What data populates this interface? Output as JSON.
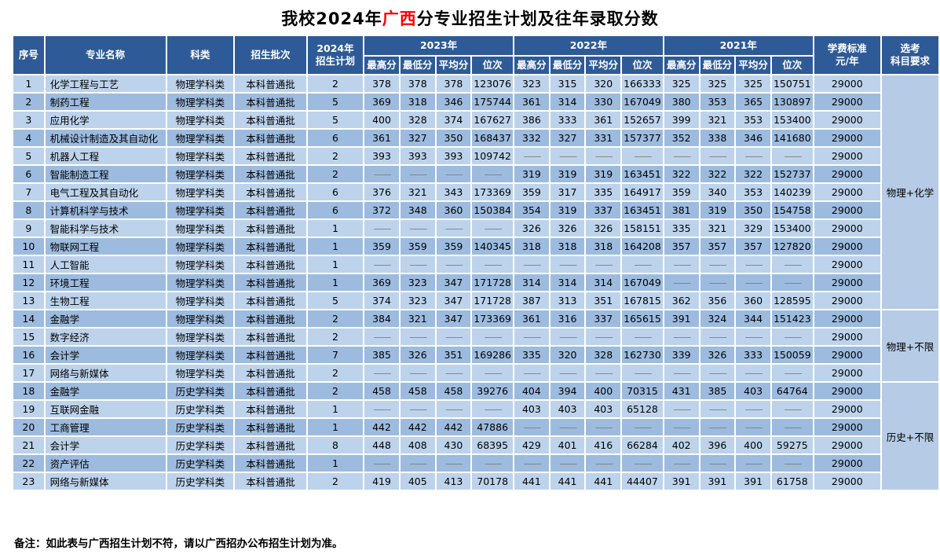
{
  "title": {
    "prefix": "我校2024年",
    "highlight": "广西",
    "suffix": "分专业招生计划及往年录取分数"
  },
  "note": "备注：如此表与广西招生计划不符，请以广西招办公布招生计划为准。",
  "colors": {
    "header_bg": "#2e5b97",
    "row_light": "#bdd3ec",
    "row_dark": "#9dbbde",
    "req_col_bg": "#b6cbe5",
    "title_highlight": "#ff0000",
    "dash": "#7f7f7f"
  },
  "table": {
    "headers": {
      "no": "序号",
      "major": "专业名称",
      "category": "科类",
      "batch": "招生批次",
      "plan2024": "2024年\n招生计划",
      "year2023": "2023年",
      "year2022": "2022年",
      "year2021": "2021年",
      "score_cols": [
        "最高分",
        "最低分",
        "平均分",
        "位次"
      ],
      "tuition": "学费标准\n元/年",
      "subject_req": "选考\n科目要求"
    },
    "merged_requirements": [
      {
        "label": "物理+化学",
        "row_start": 1,
        "row_span": 13
      },
      {
        "label": "物理+不限",
        "row_start": 14,
        "row_span": 4
      },
      {
        "label": "历史+不限",
        "row_start": 18,
        "row_span": 6
      }
    ],
    "rows": [
      {
        "no": "1",
        "major": "化学工程与工艺",
        "category": "物理学科类",
        "batch": "本科普通批",
        "plan": "2",
        "s2023": [
          "378",
          "378",
          "378",
          "123076"
        ],
        "s2022": [
          "323",
          "315",
          "320",
          "166333"
        ],
        "s2021": [
          "325",
          "325",
          "325",
          "150751"
        ],
        "tuition": "29000"
      },
      {
        "no": "2",
        "major": "制药工程",
        "category": "物理学科类",
        "batch": "本科普通批",
        "plan": "5",
        "s2023": [
          "369",
          "318",
          "346",
          "175744"
        ],
        "s2022": [
          "361",
          "314",
          "330",
          "167049"
        ],
        "s2021": [
          "380",
          "353",
          "365",
          "130897"
        ],
        "tuition": "29000"
      },
      {
        "no": "3",
        "major": "应用化学",
        "category": "物理学科类",
        "batch": "本科普通批",
        "plan": "5",
        "s2023": [
          "400",
          "328",
          "374",
          "167627"
        ],
        "s2022": [
          "386",
          "333",
          "361",
          "152657"
        ],
        "s2021": [
          "399",
          "321",
          "353",
          "153400"
        ],
        "tuition": "29000"
      },
      {
        "no": "4",
        "major": "机械设计制造及其自动化",
        "category": "物理学科类",
        "batch": "本科普通批",
        "plan": "6",
        "s2023": [
          "361",
          "327",
          "350",
          "168437"
        ],
        "s2022": [
          "332",
          "327",
          "331",
          "157377"
        ],
        "s2021": [
          "352",
          "338",
          "346",
          "141680"
        ],
        "tuition": "29000"
      },
      {
        "no": "5",
        "major": "机器人工程",
        "category": "物理学科类",
        "batch": "本科普通批",
        "plan": "2",
        "s2023": [
          "393",
          "393",
          "393",
          "109742"
        ],
        "s2022": [
          "——",
          "——",
          "——",
          "——"
        ],
        "s2021": [
          "——",
          "——",
          "——",
          "——"
        ],
        "tuition": "29000"
      },
      {
        "no": "6",
        "major": "智能制造工程",
        "category": "物理学科类",
        "batch": "本科普通批",
        "plan": "2",
        "s2023": [
          "——",
          "——",
          "——",
          "——"
        ],
        "s2022": [
          "319",
          "319",
          "319",
          "163451"
        ],
        "s2021": [
          "322",
          "322",
          "322",
          "152737"
        ],
        "tuition": "29000"
      },
      {
        "no": "7",
        "major": "电气工程及其自动化",
        "category": "物理学科类",
        "batch": "本科普通批",
        "plan": "6",
        "s2023": [
          "376",
          "321",
          "343",
          "173369"
        ],
        "s2022": [
          "359",
          "317",
          "335",
          "164917"
        ],
        "s2021": [
          "359",
          "340",
          "353",
          "140239"
        ],
        "tuition": "29000"
      },
      {
        "no": "8",
        "major": "计算机科学与技术",
        "category": "物理学科类",
        "batch": "本科普通批",
        "plan": "6",
        "s2023": [
          "372",
          "348",
          "360",
          "150384"
        ],
        "s2022": [
          "354",
          "319",
          "337",
          "163451"
        ],
        "s2021": [
          "381",
          "319",
          "350",
          "154758"
        ],
        "tuition": "29000"
      },
      {
        "no": "9",
        "major": "智能科学与技术",
        "category": "物理学科类",
        "batch": "本科普通批",
        "plan": "1",
        "s2023": [
          "——",
          "——",
          "——",
          "——"
        ],
        "s2022": [
          "326",
          "326",
          "326",
          "158151"
        ],
        "s2021": [
          "335",
          "321",
          "329",
          "153400"
        ],
        "tuition": "29000"
      },
      {
        "no": "10",
        "major": "物联网工程",
        "category": "物理学科类",
        "batch": "本科普通批",
        "plan": "1",
        "s2023": [
          "359",
          "359",
          "359",
          "140345"
        ],
        "s2022": [
          "318",
          "318",
          "318",
          "164208"
        ],
        "s2021": [
          "357",
          "357",
          "357",
          "127820"
        ],
        "tuition": "29000"
      },
      {
        "no": "11",
        "major": "人工智能",
        "category": "物理学科类",
        "batch": "本科普通批",
        "plan": "1",
        "s2023": [
          "——",
          "——",
          "——",
          "——"
        ],
        "s2022": [
          "——",
          "——",
          "——",
          "——"
        ],
        "s2021": [
          "——",
          "——",
          "——",
          "——"
        ],
        "tuition": "29000"
      },
      {
        "no": "12",
        "major": "环境工程",
        "category": "物理学科类",
        "batch": "本科普通批",
        "plan": "1",
        "s2023": [
          "369",
          "323",
          "347",
          "171728"
        ],
        "s2022": [
          "314",
          "314",
          "314",
          "167049"
        ],
        "s2021": [
          "——",
          "——",
          "——",
          "——"
        ],
        "tuition": "29000"
      },
      {
        "no": "13",
        "major": "生物工程",
        "category": "物理学科类",
        "batch": "本科普通批",
        "plan": "5",
        "s2023": [
          "374",
          "323",
          "347",
          "171728"
        ],
        "s2022": [
          "387",
          "313",
          "351",
          "167815"
        ],
        "s2021": [
          "362",
          "356",
          "360",
          "128595"
        ],
        "tuition": "29000"
      },
      {
        "no": "14",
        "major": "金融学",
        "category": "物理学科类",
        "batch": "本科普通批",
        "plan": "2",
        "s2023": [
          "384",
          "321",
          "347",
          "173369"
        ],
        "s2022": [
          "361",
          "316",
          "337",
          "165615"
        ],
        "s2021": [
          "391",
          "324",
          "344",
          "151423"
        ],
        "tuition": "29000"
      },
      {
        "no": "15",
        "major": "数字经济",
        "category": "物理学科类",
        "batch": "本科普通批",
        "plan": "2",
        "s2023": [
          "——",
          "——",
          "——",
          "——"
        ],
        "s2022": [
          "——",
          "——",
          "——",
          "——"
        ],
        "s2021": [
          "——",
          "——",
          "——",
          "——"
        ],
        "tuition": "29000"
      },
      {
        "no": "16",
        "major": "会计学",
        "category": "物理学科类",
        "batch": "本科普通批",
        "plan": "7",
        "s2023": [
          "385",
          "326",
          "351",
          "169286"
        ],
        "s2022": [
          "335",
          "320",
          "328",
          "162730"
        ],
        "s2021": [
          "339",
          "326",
          "333",
          "150059"
        ],
        "tuition": "29000"
      },
      {
        "no": "17",
        "major": "网络与新媒体",
        "category": "物理学科类",
        "batch": "本科普通批",
        "plan": "2",
        "s2023": [
          "——",
          "——",
          "——",
          "——"
        ],
        "s2022": [
          "——",
          "——",
          "——",
          "——"
        ],
        "s2021": [
          "——",
          "——",
          "——",
          "——"
        ],
        "tuition": "29000"
      },
      {
        "no": "18",
        "major": "金融学",
        "category": "历史学科类",
        "batch": "本科普通批",
        "plan": "2",
        "s2023": [
          "458",
          "458",
          "458",
          "39276"
        ],
        "s2022": [
          "404",
          "394",
          "400",
          "70315"
        ],
        "s2021": [
          "431",
          "385",
          "403",
          "64764"
        ],
        "tuition": "29000"
      },
      {
        "no": "19",
        "major": "互联网金融",
        "category": "历史学科类",
        "batch": "本科普通批",
        "plan": "1",
        "s2023": [
          "——",
          "——",
          "——",
          "——"
        ],
        "s2022": [
          "403",
          "403",
          "403",
          "65128"
        ],
        "s2021": [
          "——",
          "——",
          "——",
          "——"
        ],
        "tuition": "29000"
      },
      {
        "no": "20",
        "major": "工商管理",
        "category": "历史学科类",
        "batch": "本科普通批",
        "plan": "1",
        "s2023": [
          "442",
          "442",
          "442",
          "47886"
        ],
        "s2022": [
          "——",
          "——",
          "——",
          "——"
        ],
        "s2021": [
          "——",
          "——",
          "——",
          "——"
        ],
        "tuition": "29000"
      },
      {
        "no": "21",
        "major": "会计学",
        "category": "历史学科类",
        "batch": "本科普通批",
        "plan": "8",
        "s2023": [
          "448",
          "408",
          "430",
          "68395"
        ],
        "s2022": [
          "429",
          "401",
          "416",
          "66284"
        ],
        "s2021": [
          "402",
          "396",
          "400",
          "59275"
        ],
        "tuition": "29000"
      },
      {
        "no": "22",
        "major": "资产评估",
        "category": "历史学科类",
        "batch": "本科普通批",
        "plan": "1",
        "s2023": [
          "——",
          "——",
          "——",
          "——"
        ],
        "s2022": [
          "——",
          "——",
          "——",
          "——"
        ],
        "s2021": [
          "——",
          "——",
          "——",
          "——"
        ],
        "tuition": "29000"
      },
      {
        "no": "23",
        "major": "网络与新媒体",
        "category": "历史学科类",
        "batch": "本科普通批",
        "plan": "2",
        "s2023": [
          "419",
          "405",
          "413",
          "70178"
        ],
        "s2022": [
          "441",
          "441",
          "441",
          "44407"
        ],
        "s2021": [
          "391",
          "391",
          "391",
          "61758"
        ],
        "tuition": "29000"
      }
    ]
  }
}
